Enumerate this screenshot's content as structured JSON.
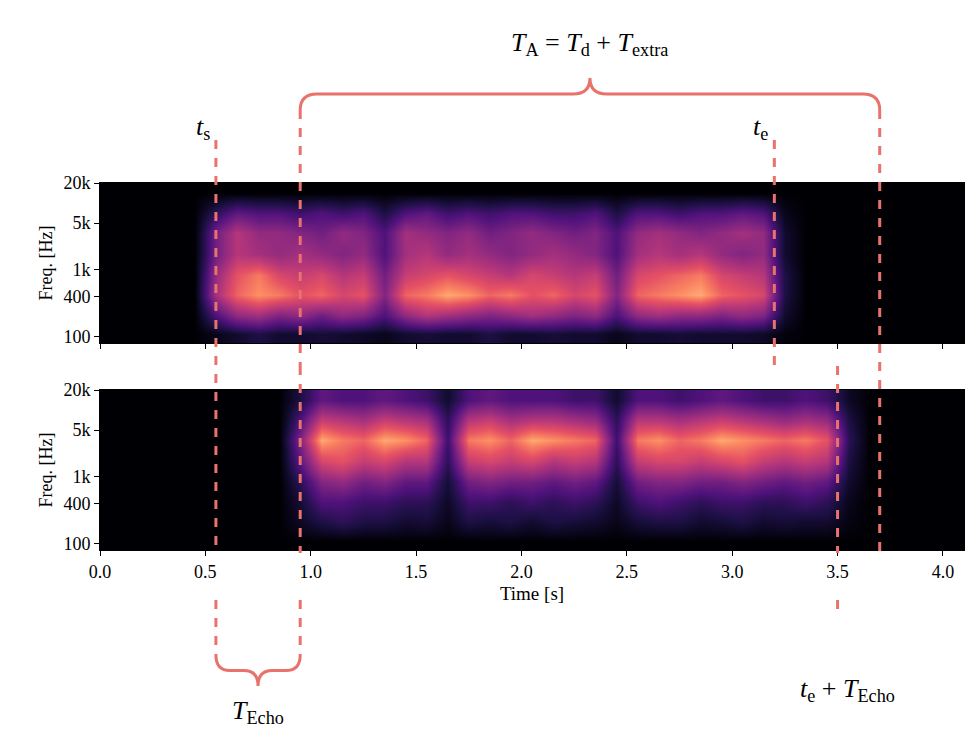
{
  "chart_data": {
    "type": "heatmap",
    "x_label": "Time [s]",
    "y_label": "Freq. [Hz]",
    "log": "y",
    "grid": false,
    "xlim": [
      0,
      4.1
    ],
    "xticks": [
      {
        "value": 0,
        "label": "0.0"
      },
      {
        "value": 0.5,
        "label": "0.5"
      },
      {
        "value": 1,
        "label": "1.0"
      },
      {
        "value": 1.5,
        "label": "1.5"
      },
      {
        "value": 2,
        "label": "2.0"
      },
      {
        "value": 2.5,
        "label": "2.5"
      },
      {
        "value": 3,
        "label": "3.0"
      },
      {
        "value": 3.5,
        "label": "3.5"
      },
      {
        "value": 4,
        "label": "4.0"
      }
    ],
    "ylim": [
      80,
      20000
    ],
    "yticks": [
      100,
      400,
      {
        "value": 1000,
        "label": "1k"
      },
      {
        "value": 5000,
        "label": "5k"
      },
      {
        "value": 20000,
        "label": "20k"
      }
    ],
    "zlim": [
      0,
      1
    ],
    "x": [
      0,
      0.1,
      0.2,
      0.3,
      0.4,
      0.5,
      0.6,
      0.7,
      0.8,
      0.9,
      1.0,
      1.1,
      1.2,
      1.3,
      1.4,
      1.5,
      1.6,
      1.7,
      1.8,
      1.9,
      2.0,
      2.1,
      2.2,
      2.3,
      2.4,
      2.5,
      2.6,
      2.7,
      2.8,
      2.9,
      3.0,
      3.1,
      3.2,
      3.3,
      3.4,
      3.5,
      3.6,
      3.7,
      3.8,
      3.9,
      4.0,
      4.1
    ],
    "y": [
      80,
      150,
      300,
      600,
      1200,
      2500,
      5000,
      10000,
      20000
    ],
    "panels": [
      {
        "z": [
          [
            0,
            0,
            0,
            0,
            0,
            0.05,
            0.1,
            0.15,
            0.1,
            0.1,
            0.12,
            0.1,
            0.08,
            0.05,
            0.1,
            0.12,
            0.1,
            0.1,
            0.15,
            0.1,
            0.1,
            0.12,
            0.1,
            0.1,
            0.05,
            0.1,
            0.1,
            0.12,
            0.1,
            0.1,
            0.1,
            0.08,
            0.02,
            0,
            0,
            0,
            0,
            0,
            0,
            0,
            0
          ],
          [
            0,
            0,
            0,
            0,
            0,
            0.3,
            0.5,
            0.55,
            0.45,
            0.5,
            0.4,
            0.5,
            0.45,
            0.3,
            0.5,
            0.6,
            0.55,
            0.5,
            0.45,
            0.5,
            0.55,
            0.5,
            0.45,
            0.5,
            0.3,
            0.5,
            0.55,
            0.5,
            0.5,
            0.45,
            0.5,
            0.45,
            0.1,
            0,
            0,
            0,
            0,
            0,
            0,
            0,
            0
          ],
          [
            0,
            0,
            0,
            0,
            0,
            0.55,
            0.8,
            0.9,
            0.85,
            0.75,
            0.8,
            0.7,
            0.75,
            0.45,
            0.8,
            0.85,
            0.95,
            0.9,
            0.8,
            0.85,
            0.75,
            0.8,
            0.7,
            0.75,
            0.45,
            0.8,
            0.85,
            0.9,
            0.95,
            0.8,
            0.75,
            0.7,
            0.15,
            0,
            0,
            0,
            0,
            0,
            0,
            0,
            0
          ],
          [
            0,
            0,
            0,
            0,
            0,
            0.5,
            0.75,
            0.85,
            0.7,
            0.65,
            0.7,
            0.6,
            0.65,
            0.4,
            0.65,
            0.7,
            0.75,
            0.7,
            0.65,
            0.6,
            0.7,
            0.65,
            0.6,
            0.65,
            0.4,
            0.7,
            0.75,
            0.8,
            0.85,
            0.7,
            0.65,
            0.6,
            0.15,
            0,
            0,
            0,
            0,
            0,
            0,
            0,
            0
          ],
          [
            0,
            0,
            0,
            0,
            0,
            0.4,
            0.6,
            0.55,
            0.5,
            0.55,
            0.5,
            0.45,
            0.5,
            0.3,
            0.55,
            0.6,
            0.5,
            0.55,
            0.5,
            0.45,
            0.5,
            0.55,
            0.5,
            0.45,
            0.3,
            0.55,
            0.6,
            0.55,
            0.6,
            0.5,
            0.45,
            0.5,
            0.1,
            0,
            0,
            0,
            0,
            0,
            0,
            0,
            0
          ],
          [
            0,
            0,
            0,
            0,
            0,
            0.4,
            0.6,
            0.5,
            0.5,
            0.45,
            0.4,
            0.5,
            0.45,
            0.3,
            0.55,
            0.5,
            0.45,
            0.5,
            0.4,
            0.45,
            0.5,
            0.45,
            0.4,
            0.45,
            0.3,
            0.5,
            0.55,
            0.5,
            0.45,
            0.5,
            0.55,
            0.5,
            0.1,
            0,
            0,
            0,
            0,
            0,
            0,
            0,
            0
          ],
          [
            0,
            0,
            0,
            0,
            0,
            0.2,
            0.35,
            0.3,
            0.3,
            0.25,
            0.3,
            0.25,
            0.3,
            0.15,
            0.3,
            0.35,
            0.25,
            0.3,
            0.25,
            0.3,
            0.3,
            0.25,
            0.25,
            0.3,
            0.15,
            0.3,
            0.3,
            0.25,
            0.3,
            0.3,
            0.35,
            0.3,
            0.05,
            0,
            0,
            0,
            0,
            0,
            0,
            0,
            0
          ],
          [
            0,
            0,
            0,
            0,
            0,
            0,
            0,
            0,
            0,
            0,
            0,
            0,
            0,
            0,
            0,
            0,
            0,
            0,
            0,
            0,
            0,
            0,
            0,
            0,
            0,
            0,
            0,
            0,
            0,
            0,
            0,
            0,
            0,
            0,
            0,
            0,
            0,
            0,
            0,
            0,
            0
          ]
        ]
      },
      {
        "z": [
          [
            0,
            0,
            0,
            0,
            0,
            0,
            0,
            0,
            0,
            0,
            0,
            0,
            0,
            0,
            0,
            0,
            0,
            0,
            0,
            0,
            0,
            0,
            0,
            0,
            0,
            0,
            0,
            0,
            0,
            0,
            0,
            0,
            0,
            0,
            0,
            0,
            0,
            0,
            0,
            0,
            0
          ],
          [
            0,
            0,
            0,
            0,
            0,
            0,
            0,
            0,
            0,
            0.08,
            0.15,
            0.2,
            0.15,
            0.15,
            0.1,
            0.12,
            0.05,
            0.15,
            0.12,
            0.15,
            0.1,
            0.15,
            0.12,
            0.1,
            0.05,
            0.12,
            0.15,
            0.15,
            0.1,
            0.12,
            0.15,
            0.1,
            0.12,
            0.1,
            0.1,
            0.03,
            0,
            0,
            0,
            0,
            0
          ],
          [
            0,
            0,
            0,
            0,
            0,
            0,
            0,
            0,
            0,
            0.12,
            0.3,
            0.3,
            0.25,
            0.25,
            0.2,
            0.2,
            0.08,
            0.25,
            0.25,
            0.2,
            0.25,
            0.2,
            0.25,
            0.2,
            0.08,
            0.25,
            0.3,
            0.25,
            0.2,
            0.25,
            0.25,
            0.2,
            0.2,
            0.25,
            0.2,
            0.05,
            0,
            0,
            0,
            0,
            0
          ],
          [
            0,
            0,
            0,
            0,
            0,
            0,
            0,
            0,
            0,
            0.2,
            0.45,
            0.5,
            0.4,
            0.45,
            0.35,
            0.35,
            0.12,
            0.4,
            0.45,
            0.4,
            0.4,
            0.35,
            0.4,
            0.35,
            0.12,
            0.4,
            0.45,
            0.45,
            0.4,
            0.4,
            0.45,
            0.4,
            0.35,
            0.4,
            0.35,
            0.1,
            0,
            0,
            0,
            0,
            0
          ],
          [
            0,
            0,
            0,
            0,
            0,
            0,
            0,
            0,
            0,
            0.35,
            0.7,
            0.75,
            0.65,
            0.7,
            0.6,
            0.6,
            0.2,
            0.65,
            0.7,
            0.65,
            0.7,
            0.6,
            0.65,
            0.6,
            0.2,
            0.65,
            0.7,
            0.7,
            0.65,
            0.7,
            0.75,
            0.65,
            0.6,
            0.65,
            0.6,
            0.15,
            0,
            0,
            0,
            0,
            0
          ],
          [
            0,
            0,
            0,
            0,
            0,
            0,
            0,
            0,
            0,
            0.45,
            0.95,
            0.85,
            0.8,
            0.95,
            0.9,
            0.8,
            0.25,
            0.85,
            0.9,
            0.8,
            0.95,
            0.9,
            0.85,
            0.8,
            0.25,
            0.85,
            0.9,
            0.8,
            0.85,
            0.95,
            0.9,
            0.85,
            0.8,
            0.85,
            0.75,
            0.2,
            0,
            0,
            0,
            0,
            0
          ],
          [
            0,
            0,
            0,
            0,
            0,
            0,
            0,
            0,
            0,
            0.3,
            0.65,
            0.6,
            0.55,
            0.65,
            0.6,
            0.55,
            0.2,
            0.6,
            0.65,
            0.55,
            0.6,
            0.6,
            0.55,
            0.5,
            0.2,
            0.6,
            0.6,
            0.55,
            0.6,
            0.65,
            0.6,
            0.55,
            0.5,
            0.55,
            0.5,
            0.15,
            0,
            0,
            0,
            0,
            0
          ],
          [
            0,
            0,
            0,
            0,
            0,
            0,
            0,
            0,
            0,
            0.15,
            0.35,
            0.3,
            0.3,
            0.35,
            0.3,
            0.25,
            0.1,
            0.3,
            0.35,
            0.3,
            0.3,
            0.3,
            0.25,
            0.25,
            0.1,
            0.3,
            0.3,
            0.25,
            0.3,
            0.35,
            0.3,
            0.25,
            0.25,
            0.3,
            0.25,
            0.08,
            0,
            0,
            0,
            0,
            0
          ]
        ]
      }
    ],
    "events": [
      {
        "x": 0.55,
        "label": [
          [
            "t",
            "s"
          ]
        ]
      },
      {
        "x": 3.2,
        "label": [
          [
            "t",
            "e"
          ]
        ]
      },
      {
        "x": 3.5,
        "label": [
          [
            "t",
            "e"
          ],
          " + ",
          [
            "T",
            "Echo"
          ]
        ]
      }
    ],
    "brackets": [
      {
        "x0": 0.55,
        "x1": 0.95,
        "label": [
          [
            "T",
            "Echo"
          ]
        ]
      },
      {
        "x0": 0.95,
        "x1": 3.7,
        "label": [
          [
            "T",
            "A"
          ],
          " = ",
          [
            "T",
            "d"
          ],
          " + ",
          [
            "T",
            "extra"
          ]
        ]
      }
    ]
  }
}
